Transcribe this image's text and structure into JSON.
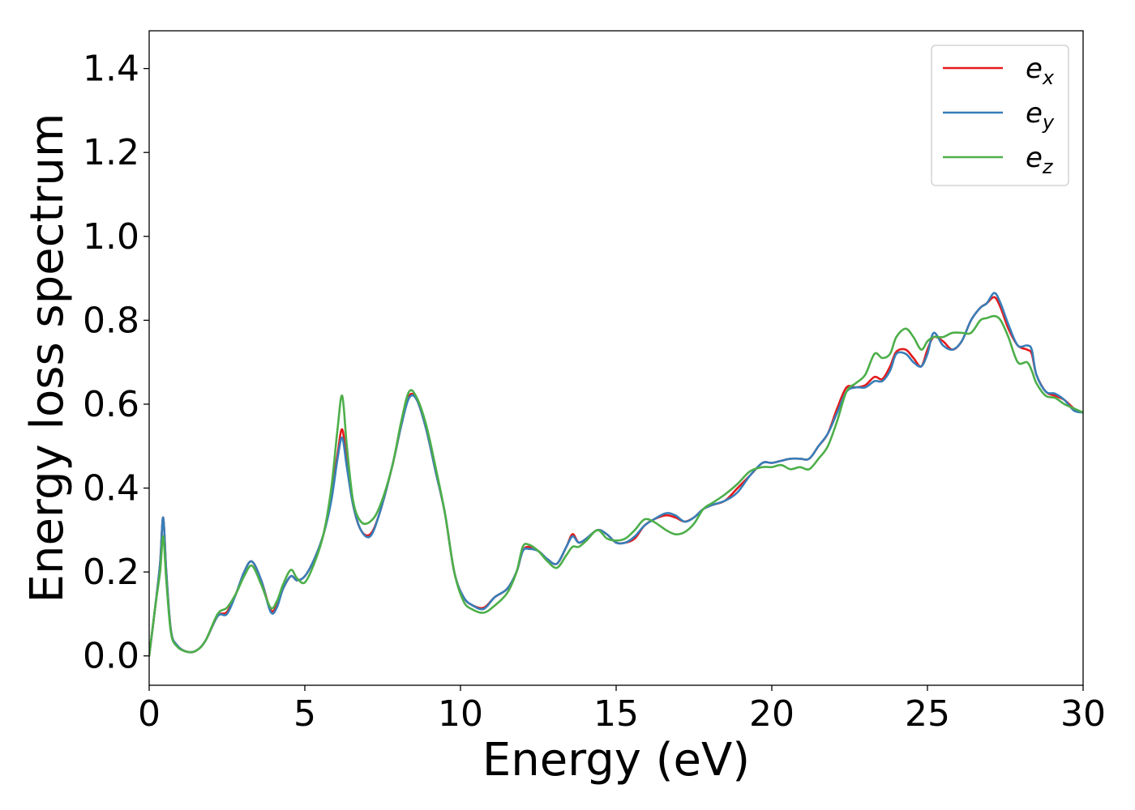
{
  "chart_data": {
    "type": "line",
    "xlabel": "Energy (eV)",
    "ylabel": "Energy loss spectrum",
    "xlim": [
      0,
      30
    ],
    "ylim": [
      -0.07,
      1.49
    ],
    "xticks": [
      "0",
      "5",
      "10",
      "15",
      "20",
      "25",
      "30"
    ],
    "yticks": [
      "0.0",
      "0.2",
      "0.4",
      "0.6",
      "0.8",
      "1.0",
      "1.2",
      "1.4"
    ],
    "grid": false,
    "legend_position": "top-right",
    "series": [
      {
        "name": "e_x",
        "legend_base": "e",
        "legend_sub": "x",
        "color": "#e41a1c",
        "x": [
          0,
          0.2,
          0.35,
          0.45,
          0.55,
          0.7,
          0.9,
          1.2,
          1.5,
          1.8,
          2.2,
          2.5,
          2.8,
          3.05,
          3.3,
          3.6,
          3.9,
          4.1,
          4.3,
          4.55,
          4.75,
          5.0,
          5.3,
          5.6,
          5.85,
          6.05,
          6.2,
          6.35,
          6.55,
          6.8,
          7.1,
          7.4,
          7.8,
          8.1,
          8.35,
          8.6,
          8.9,
          9.2,
          9.5,
          9.8,
          10.1,
          10.4,
          10.75,
          11.1,
          11.5,
          11.8,
          12.0,
          12.2,
          12.5,
          12.8,
          13.1,
          13.4,
          13.6,
          13.8,
          14.05,
          14.4,
          14.7,
          15.0,
          15.3,
          15.6,
          15.9,
          16.2,
          16.6,
          16.9,
          17.2,
          17.5,
          17.8,
          18.1,
          18.5,
          18.9,
          19.3,
          19.7,
          20.0,
          20.3,
          20.6,
          20.9,
          21.2,
          21.5,
          21.8,
          22.1,
          22.4,
          22.7,
          23.0,
          23.3,
          23.55,
          23.8,
          24.0,
          24.3,
          24.55,
          24.8,
          25.0,
          25.2,
          25.5,
          25.8,
          26.1,
          26.4,
          26.7,
          26.9,
          27.15,
          27.35,
          27.6,
          27.9,
          28.2,
          28.35,
          28.5,
          28.8,
          29.1,
          29.4,
          29.7,
          30.0
        ],
        "y": [
          0.0,
          0.12,
          0.22,
          0.33,
          0.2,
          0.06,
          0.025,
          0.01,
          0.012,
          0.035,
          0.095,
          0.105,
          0.15,
          0.2,
          0.225,
          0.18,
          0.11,
          0.12,
          0.16,
          0.19,
          0.18,
          0.19,
          0.23,
          0.29,
          0.38,
          0.48,
          0.54,
          0.46,
          0.36,
          0.3,
          0.29,
          0.34,
          0.45,
          0.55,
          0.62,
          0.61,
          0.54,
          0.44,
          0.34,
          0.2,
          0.14,
          0.12,
          0.115,
          0.14,
          0.16,
          0.2,
          0.25,
          0.26,
          0.25,
          0.23,
          0.22,
          0.26,
          0.29,
          0.27,
          0.28,
          0.3,
          0.29,
          0.27,
          0.27,
          0.28,
          0.31,
          0.325,
          0.335,
          0.33,
          0.32,
          0.33,
          0.35,
          0.36,
          0.37,
          0.4,
          0.43,
          0.46,
          0.46,
          0.465,
          0.47,
          0.47,
          0.47,
          0.5,
          0.53,
          0.59,
          0.64,
          0.64,
          0.645,
          0.665,
          0.66,
          0.69,
          0.725,
          0.73,
          0.71,
          0.69,
          0.73,
          0.76,
          0.75,
          0.73,
          0.75,
          0.8,
          0.83,
          0.84,
          0.855,
          0.83,
          0.78,
          0.74,
          0.73,
          0.72,
          0.67,
          0.63,
          0.62,
          0.61,
          0.59,
          0.58
        ]
      },
      {
        "name": "e_y",
        "legend_base": "e",
        "legend_sub": "y",
        "color": "#377eb8",
        "x": [
          0,
          0.2,
          0.35,
          0.45,
          0.55,
          0.7,
          0.9,
          1.2,
          1.5,
          1.8,
          2.2,
          2.5,
          2.8,
          3.05,
          3.3,
          3.6,
          3.9,
          4.1,
          4.3,
          4.55,
          4.75,
          5.0,
          5.3,
          5.6,
          5.85,
          6.05,
          6.2,
          6.35,
          6.55,
          6.8,
          7.1,
          7.4,
          7.8,
          8.1,
          8.35,
          8.6,
          8.9,
          9.2,
          9.5,
          9.8,
          10.1,
          10.4,
          10.75,
          11.1,
          11.5,
          11.8,
          12.0,
          12.2,
          12.5,
          12.8,
          13.1,
          13.4,
          13.6,
          13.8,
          14.05,
          14.4,
          14.7,
          15.0,
          15.3,
          15.6,
          15.9,
          16.2,
          16.6,
          16.9,
          17.2,
          17.5,
          17.8,
          18.1,
          18.5,
          18.9,
          19.3,
          19.7,
          20.0,
          20.3,
          20.6,
          20.9,
          21.2,
          21.5,
          21.8,
          22.1,
          22.4,
          22.7,
          23.0,
          23.3,
          23.55,
          23.8,
          24.0,
          24.3,
          24.55,
          24.8,
          25.0,
          25.2,
          25.5,
          25.8,
          26.1,
          26.4,
          26.7,
          26.9,
          27.15,
          27.35,
          27.6,
          27.9,
          28.2,
          28.35,
          28.5,
          28.8,
          29.1,
          29.4,
          29.7,
          30.0
        ],
        "y": [
          0.0,
          0.12,
          0.22,
          0.33,
          0.2,
          0.06,
          0.025,
          0.01,
          0.012,
          0.035,
          0.095,
          0.1,
          0.15,
          0.2,
          0.225,
          0.18,
          0.105,
          0.115,
          0.16,
          0.19,
          0.18,
          0.19,
          0.23,
          0.29,
          0.37,
          0.47,
          0.52,
          0.45,
          0.36,
          0.3,
          0.285,
          0.34,
          0.45,
          0.55,
          0.615,
          0.61,
          0.54,
          0.44,
          0.34,
          0.2,
          0.14,
          0.12,
          0.112,
          0.14,
          0.16,
          0.2,
          0.25,
          0.255,
          0.25,
          0.23,
          0.22,
          0.26,
          0.285,
          0.27,
          0.28,
          0.3,
          0.29,
          0.27,
          0.27,
          0.285,
          0.31,
          0.325,
          0.34,
          0.335,
          0.32,
          0.33,
          0.35,
          0.36,
          0.37,
          0.39,
          0.43,
          0.46,
          0.46,
          0.465,
          0.47,
          0.47,
          0.47,
          0.5,
          0.53,
          0.58,
          0.63,
          0.64,
          0.64,
          0.655,
          0.655,
          0.68,
          0.72,
          0.72,
          0.7,
          0.69,
          0.72,
          0.77,
          0.74,
          0.73,
          0.75,
          0.8,
          0.83,
          0.84,
          0.865,
          0.84,
          0.79,
          0.74,
          0.74,
          0.73,
          0.67,
          0.63,
          0.625,
          0.61,
          0.585,
          0.58
        ]
      },
      {
        "name": "e_z",
        "legend_base": "e",
        "legend_sub": "z",
        "color": "#4daf4a",
        "x": [
          0,
          0.2,
          0.35,
          0.45,
          0.55,
          0.7,
          0.9,
          1.2,
          1.5,
          1.8,
          2.2,
          2.5,
          2.8,
          3.05,
          3.3,
          3.6,
          3.9,
          4.1,
          4.3,
          4.55,
          4.75,
          5.0,
          5.3,
          5.6,
          5.85,
          6.05,
          6.2,
          6.35,
          6.55,
          6.8,
          7.1,
          7.4,
          7.8,
          8.1,
          8.35,
          8.6,
          8.9,
          9.2,
          9.5,
          9.8,
          10.1,
          10.4,
          10.75,
          11.1,
          11.5,
          11.8,
          12.0,
          12.2,
          12.5,
          12.8,
          13.1,
          13.4,
          13.6,
          13.8,
          14.05,
          14.4,
          14.7,
          15.0,
          15.3,
          15.6,
          15.9,
          16.2,
          16.6,
          16.9,
          17.2,
          17.5,
          17.8,
          18.1,
          18.5,
          18.9,
          19.3,
          19.7,
          20.0,
          20.3,
          20.6,
          20.9,
          21.2,
          21.5,
          21.8,
          22.1,
          22.4,
          22.7,
          23.0,
          23.3,
          23.55,
          23.8,
          24.0,
          24.3,
          24.55,
          24.8,
          25.0,
          25.2,
          25.5,
          25.8,
          26.1,
          26.4,
          26.7,
          26.9,
          27.15,
          27.35,
          27.6,
          27.9,
          28.2,
          28.35,
          28.5,
          28.8,
          29.1,
          29.4,
          29.7,
          30.0
        ],
        "y": [
          0.0,
          0.12,
          0.2,
          0.285,
          0.18,
          0.055,
          0.022,
          0.01,
          0.012,
          0.035,
          0.1,
          0.115,
          0.15,
          0.19,
          0.215,
          0.17,
          0.115,
          0.13,
          0.17,
          0.205,
          0.185,
          0.175,
          0.22,
          0.29,
          0.4,
          0.54,
          0.62,
          0.5,
          0.37,
          0.32,
          0.32,
          0.355,
          0.45,
          0.56,
          0.63,
          0.615,
          0.55,
          0.45,
          0.34,
          0.2,
          0.13,
          0.11,
          0.103,
          0.12,
          0.15,
          0.2,
          0.26,
          0.265,
          0.25,
          0.225,
          0.21,
          0.24,
          0.26,
          0.26,
          0.275,
          0.3,
          0.28,
          0.275,
          0.28,
          0.3,
          0.325,
          0.32,
          0.3,
          0.29,
          0.295,
          0.315,
          0.35,
          0.365,
          0.385,
          0.41,
          0.44,
          0.45,
          0.45,
          0.455,
          0.445,
          0.45,
          0.445,
          0.47,
          0.5,
          0.56,
          0.63,
          0.65,
          0.67,
          0.72,
          0.71,
          0.72,
          0.76,
          0.78,
          0.76,
          0.73,
          0.75,
          0.76,
          0.76,
          0.77,
          0.77,
          0.77,
          0.8,
          0.805,
          0.81,
          0.8,
          0.76,
          0.7,
          0.7,
          0.68,
          0.65,
          0.62,
          0.615,
          0.6,
          0.59,
          0.58
        ]
      }
    ]
  }
}
